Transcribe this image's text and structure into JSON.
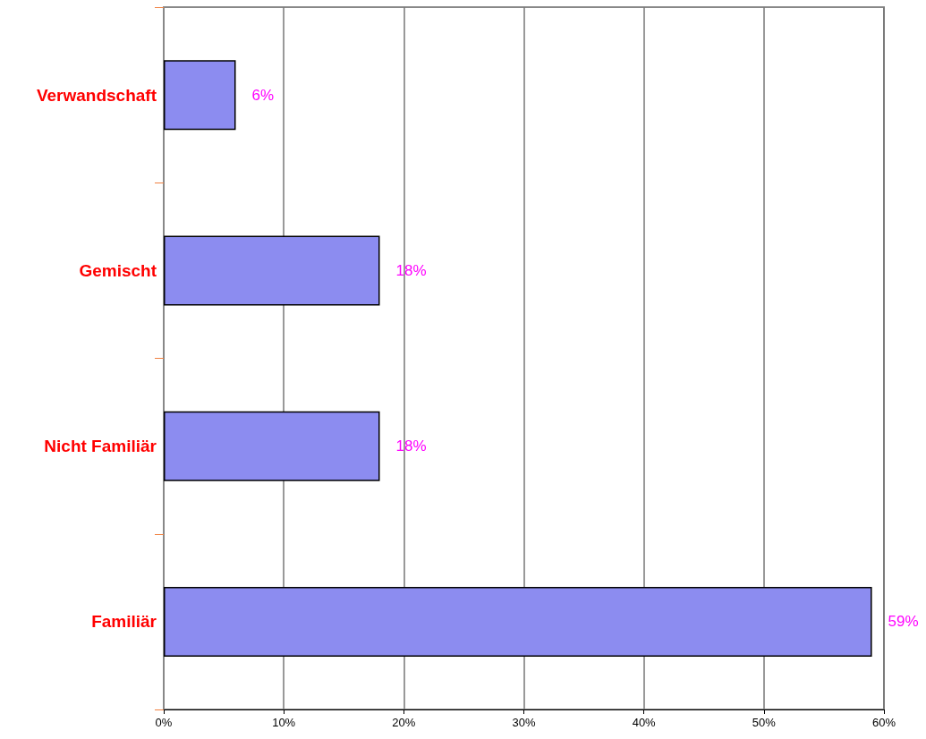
{
  "chart_data": {
    "type": "bar",
    "orientation": "horizontal",
    "categories": [
      "Verwandschaft",
      "Gemischt",
      "Nicht Familiär",
      "Familiär"
    ],
    "values": [
      6,
      18,
      18,
      59
    ],
    "color": "#8c8cf0",
    "value_labels": [
      "6%",
      "18%",
      "18%",
      "59%"
    ],
    "xlim": [
      0,
      60
    ],
    "xticks": [
      {
        "value": 0,
        "label": "0%"
      },
      {
        "value": 10,
        "label": "10%"
      },
      {
        "value": 20,
        "label": "20%"
      },
      {
        "value": 30,
        "label": "30%"
      },
      {
        "value": 40,
        "label": "40%"
      },
      {
        "value": 50,
        "label": "50%"
      },
      {
        "value": 60,
        "label": "60%"
      }
    ],
    "grid": "x"
  }
}
